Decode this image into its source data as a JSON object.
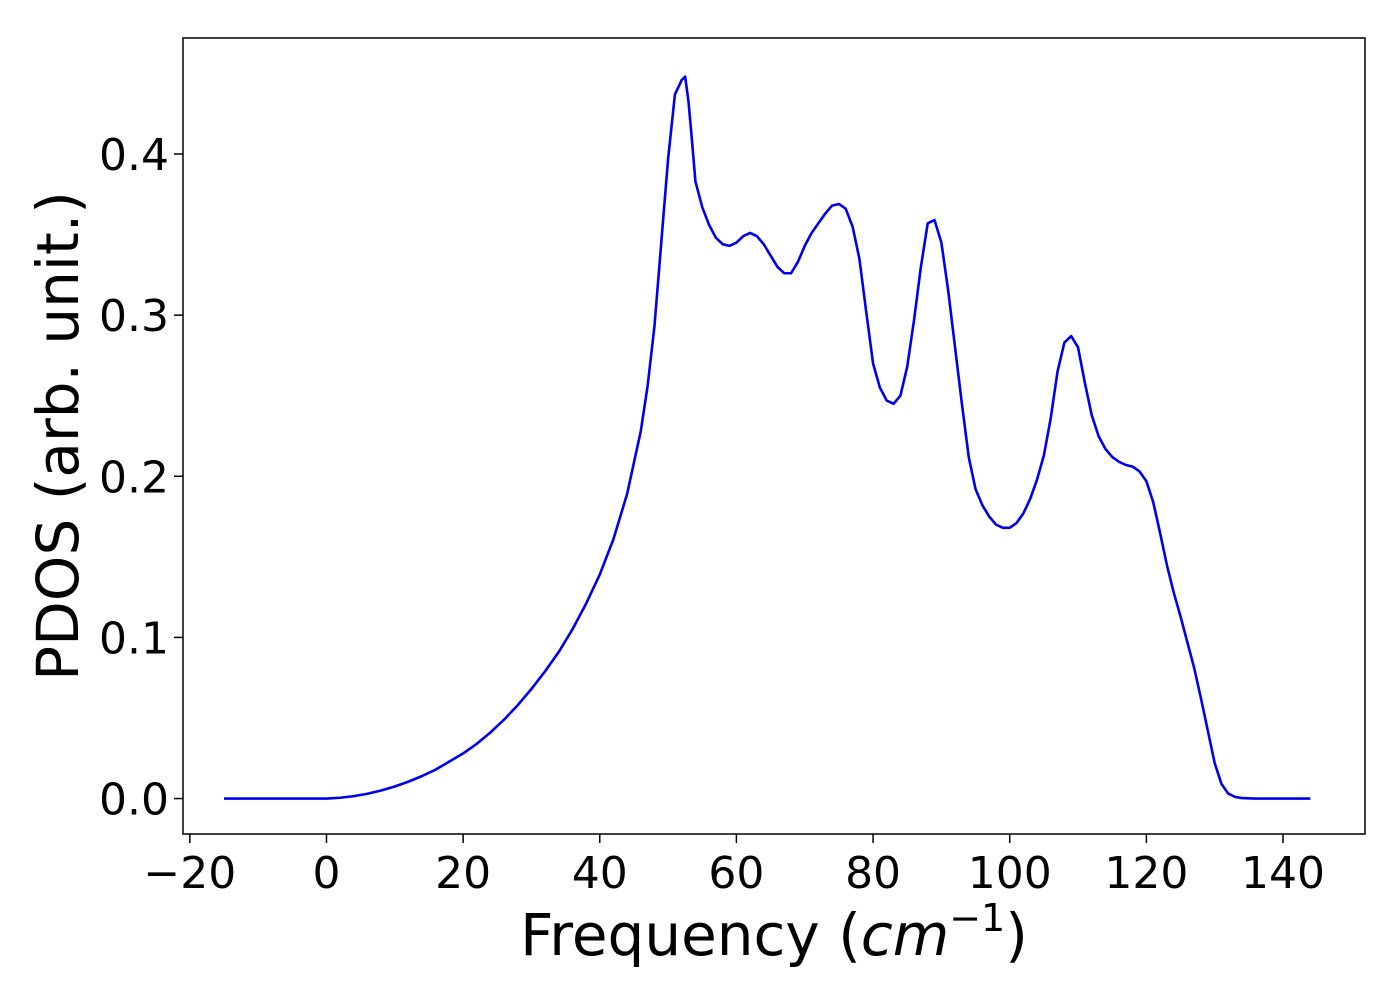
{
  "chart_data": {
    "type": "line",
    "title": "",
    "xlabel": "Frequency",
    "xlabel_unit_base": "cm",
    "xlabel_unit_exp": "−1",
    "ylabel": "PDOS (arb. unit.)",
    "xlim": [
      -21,
      152
    ],
    "ylim": [
      -0.022,
      0.472
    ],
    "xticks": [
      -20,
      0,
      20,
      40,
      60,
      80,
      100,
      120,
      140
    ],
    "xtick_labels": [
      "−20",
      "0",
      "20",
      "40",
      "60",
      "80",
      "100",
      "120",
      "140"
    ],
    "yticks": [
      0.0,
      0.1,
      0.2,
      0.3,
      0.4
    ],
    "ytick_labels": [
      "0.0",
      "0.1",
      "0.2",
      "0.3",
      "0.4"
    ],
    "grid": false,
    "series": [
      {
        "color": "#0000ee",
        "x": [
          -15,
          -10,
          -5,
          0,
          2,
          4,
          6,
          8,
          10,
          12,
          14,
          16,
          18,
          20,
          22,
          24,
          26,
          28,
          30,
          32,
          34,
          36,
          38,
          40,
          42,
          44,
          46,
          47,
          48,
          49,
          50,
          51,
          52,
          52.5,
          53,
          53.5,
          54,
          55,
          56,
          57,
          58,
          59,
          60,
          61,
          62,
          63,
          64,
          65,
          66,
          67,
          68,
          69,
          70,
          71,
          72,
          73,
          74,
          75,
          76,
          77,
          78,
          79,
          80,
          81,
          82,
          83,
          84,
          85,
          86,
          87,
          88,
          89,
          90,
          91,
          92,
          93,
          94,
          95,
          96,
          97,
          98,
          99,
          100,
          101,
          102,
          103,
          104,
          105,
          106,
          107,
          108,
          109,
          110,
          111,
          112,
          113,
          114,
          115,
          116,
          117,
          118,
          119,
          120,
          121,
          122,
          123,
          124,
          125,
          126,
          127,
          128,
          129,
          130,
          131,
          132,
          133,
          134,
          136,
          140,
          144
        ],
        "y": [
          0.0,
          0.0,
          0.0,
          0.0,
          0.0005,
          0.0015,
          0.003,
          0.005,
          0.0075,
          0.0105,
          0.014,
          0.018,
          0.023,
          0.028,
          0.034,
          0.041,
          0.049,
          0.058,
          0.068,
          0.079,
          0.091,
          0.105,
          0.121,
          0.139,
          0.161,
          0.189,
          0.228,
          0.256,
          0.293,
          0.345,
          0.397,
          0.437,
          0.446,
          0.448,
          0.432,
          0.408,
          0.383,
          0.367,
          0.356,
          0.348,
          0.344,
          0.343,
          0.345,
          0.349,
          0.351,
          0.349,
          0.344,
          0.337,
          0.33,
          0.326,
          0.326,
          0.333,
          0.343,
          0.351,
          0.357,
          0.363,
          0.368,
          0.369,
          0.366,
          0.355,
          0.335,
          0.302,
          0.27,
          0.255,
          0.247,
          0.245,
          0.25,
          0.268,
          0.297,
          0.33,
          0.357,
          0.359,
          0.345,
          0.315,
          0.28,
          0.245,
          0.212,
          0.192,
          0.182,
          0.175,
          0.17,
          0.168,
          0.168,
          0.171,
          0.177,
          0.186,
          0.198,
          0.213,
          0.236,
          0.265,
          0.283,
          0.287,
          0.28,
          0.258,
          0.238,
          0.225,
          0.217,
          0.212,
          0.209,
          0.207,
          0.206,
          0.203,
          0.197,
          0.184,
          0.165,
          0.145,
          0.128,
          0.113,
          0.097,
          0.081,
          0.062,
          0.042,
          0.022,
          0.009,
          0.003,
          0.001,
          0.0003,
          0.0,
          0.0,
          0.0
        ]
      }
    ]
  }
}
